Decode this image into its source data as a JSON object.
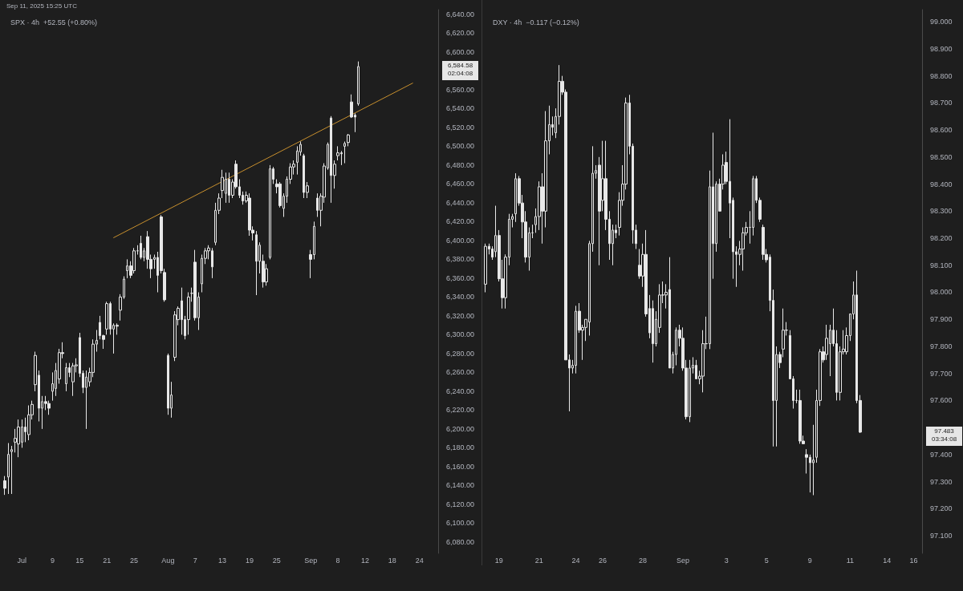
{
  "chart_data": [
    {
      "type": "candlestick",
      "title": "SPX · 4h  +52.55 (+0.80%)",
      "subtitle": "Sep 11, 2025 15:25 UTC",
      "annotations": [
        "6,584.58",
        "02:04:08"
      ],
      "categories": [
        null,
        null,
        null,
        null,
        null,
        "Jul",
        null,
        null,
        null,
        null,
        null,
        null,
        null,
        null,
        "9",
        null,
        null,
        null,
        null,
        null,
        null,
        null,
        "15",
        null,
        null,
        null,
        null,
        null,
        null,
        null,
        "21",
        null,
        null,
        null,
        null,
        null,
        null,
        null,
        "25",
        null,
        null,
        null,
        null,
        null,
        null,
        null,
        null,
        null,
        "Aug",
        null,
        null,
        null,
        null,
        null,
        null,
        null,
        "7",
        null,
        null,
        null,
        null,
        null,
        null,
        null,
        "13",
        null,
        null,
        null,
        null,
        null,
        null,
        null,
        "19",
        null,
        null,
        null,
        null,
        null,
        null,
        null,
        "25",
        null,
        null,
        null,
        null,
        null,
        null,
        null,
        null,
        null,
        "Sep",
        null,
        null,
        null,
        null,
        null,
        null,
        null,
        "8",
        null,
        null,
        null,
        null,
        null,
        null,
        null,
        "12",
        null,
        null,
        null,
        null,
        null,
        null,
        null,
        "18",
        null,
        null,
        null,
        null,
        null,
        null,
        null,
        "24",
        null,
        null,
        null,
        null,
        null
      ],
      "ylim": [
        6068,
        6645
      ],
      "yticks": [
        {
          "value": 6080,
          "label": "6,080.00"
        },
        {
          "value": 6100,
          "label": "6,100.00"
        },
        {
          "value": 6120,
          "label": "6,120.00"
        },
        {
          "value": 6140,
          "label": "6,140.00"
        },
        {
          "value": 6160,
          "label": "6,160.00"
        },
        {
          "value": 6180,
          "label": "6,180.00"
        },
        {
          "value": 6200,
          "label": "6,200.00"
        },
        {
          "value": 6220,
          "label": "6,220.00"
        },
        {
          "value": 6240,
          "label": "6,240.00"
        },
        {
          "value": 6260,
          "label": "6,260.00"
        },
        {
          "value": 6280,
          "label": "6,280.00"
        },
        {
          "value": 6300,
          "label": "6,300.00"
        },
        {
          "value": 6320,
          "label": "6,320.00"
        },
        {
          "value": 6340,
          "label": "6,340.00"
        },
        {
          "value": 6360,
          "label": "6,360.00"
        },
        {
          "value": 6380,
          "label": "6,380.00"
        },
        {
          "value": 6400,
          "label": "6,400.00"
        },
        {
          "value": 6420,
          "label": "6,420.00"
        },
        {
          "value": 6440,
          "label": "6,440.00"
        },
        {
          "value": 6460,
          "label": "6,460.00"
        },
        {
          "value": 6480,
          "label": "6,480.00"
        },
        {
          "value": 6500,
          "label": "6,500.00"
        },
        {
          "value": 6520,
          "label": "6,520.00"
        },
        {
          "value": 6540,
          "label": "6,540.00"
        },
        {
          "value": 6560,
          "label": "6,560.00"
        },
        {
          "value": 6600,
          "label": "6,600.00"
        },
        {
          "value": 6620,
          "label": "6,620.00"
        },
        {
          "value": 6640,
          "label": "6,640.00"
        }
      ],
      "ohlc": [
        [
          6145,
          6150,
          6130,
          6137
        ],
        [
          6149,
          6185,
          6131,
          6173
        ],
        [
          6176,
          6182,
          6131,
          6178
        ],
        [
          6186,
          6200,
          6175,
          6190
        ],
        [
          6184,
          6210,
          6170,
          6202
        ],
        [
          6186,
          6210,
          6180,
          6202
        ],
        [
          6202,
          6212,
          6186,
          6197
        ],
        [
          6194,
          6225,
          6188,
          6215
        ],
        [
          6215,
          6230,
          6210,
          6226
        ],
        [
          6247,
          6282,
          6240,
          6278
        ],
        [
          6257,
          6262,
          6208,
          6222
        ],
        [
          6222,
          6235,
          6200,
          6229
        ],
        [
          6229,
          6235,
          6220,
          6227
        ],
        [
          6227,
          6230,
          6215,
          6222
        ],
        [
          6240,
          6260,
          6230,
          6248
        ],
        [
          6243,
          6270,
          6235,
          6262
        ],
        [
          6253,
          6285,
          6248,
          6281
        ],
        [
          6281,
          6292,
          6275,
          6280
        ],
        [
          6248,
          6270,
          6240,
          6265
        ],
        [
          6265,
          6270,
          6255,
          6260
        ],
        [
          6250,
          6270,
          6235,
          6267
        ],
        [
          6267,
          6275,
          6260,
          6268
        ],
        [
          6297,
          6302,
          6255,
          6259
        ],
        [
          6259,
          6262,
          6238,
          6244
        ],
        [
          6244,
          6262,
          6200,
          6255
        ],
        [
          6250,
          6265,
          6245,
          6260
        ],
        [
          6260,
          6295,
          6255,
          6290
        ],
        [
          6290,
          6305,
          6282,
          6294
        ],
        [
          6313,
          6320,
          6295,
          6299
        ],
        [
          6299,
          6300,
          6285,
          6295
        ],
        [
          6306,
          6335,
          6300,
          6333
        ],
        [
          6333,
          6335,
          6300,
          6306
        ],
        [
          6306,
          6312,
          6280,
          6310
        ],
        [
          6310,
          6312,
          6300,
          6309
        ],
        [
          6326,
          6343,
          6315,
          6340
        ],
        [
          6340,
          6362,
          6338,
          6359
        ],
        [
          6368,
          6380,
          6360,
          6373
        ],
        [
          6373,
          6378,
          6360,
          6363
        ],
        [
          6368,
          6392,
          6365,
          6389
        ],
        [
          6389,
          6395,
          6385,
          6389
        ],
        [
          6397,
          6405,
          6380,
          6382
        ],
        [
          6382,
          6392,
          6378,
          6389
        ],
        [
          6404,
          6410,
          6370,
          6380
        ],
        [
          6380,
          6385,
          6360,
          6370
        ],
        [
          6380,
          6385,
          6370,
          6382
        ],
        [
          6382,
          6388,
          6345,
          6363
        ],
        [
          6425,
          6427,
          6365,
          6368
        ],
        [
          6366,
          6370,
          6335,
          6337
        ],
        [
          6278,
          6280,
          6215,
          6222
        ],
        [
          6222,
          6250,
          6212,
          6236
        ],
        [
          6276,
          6325,
          6272,
          6321
        ],
        [
          6316,
          6330,
          6310,
          6328
        ],
        [
          6336,
          6350,
          6300,
          6316
        ],
        [
          6316,
          6320,
          6295,
          6299
        ],
        [
          6316,
          6345,
          6300,
          6340
        ],
        [
          6344,
          6350,
          6335,
          6344
        ],
        [
          6377,
          6390,
          6315,
          6318
        ],
        [
          6318,
          6345,
          6305,
          6340
        ],
        [
          6354,
          6385,
          6345,
          6381
        ],
        [
          6381,
          6392,
          6375,
          6389
        ],
        [
          6389,
          6395,
          6380,
          6392
        ],
        [
          6389,
          6392,
          6360,
          6372
        ],
        [
          6398,
          6440,
          6395,
          6432
        ],
        [
          6432,
          6450,
          6428,
          6445
        ],
        [
          6453,
          6475,
          6445,
          6467
        ],
        [
          6450,
          6472,
          6440,
          6465
        ],
        [
          6465,
          6472,
          6440,
          6448
        ],
        [
          6448,
          6465,
          6445,
          6462
        ],
        [
          6481,
          6485,
          6455,
          6457
        ],
        [
          6457,
          6465,
          6445,
          6448
        ],
        [
          6448,
          6452,
          6438,
          6442
        ],
        [
          6442,
          6452,
          6440,
          6448
        ],
        [
          6445,
          6450,
          6405,
          6411
        ],
        [
          6411,
          6415,
          6400,
          6408
        ],
        [
          6406,
          6410,
          6342,
          6378
        ],
        [
          6378,
          6398,
          6365,
          6395
        ],
        [
          6378,
          6385,
          6350,
          6356
        ],
        [
          6356,
          6375,
          6352,
          6370
        ],
        [
          6382,
          6480,
          6380,
          6476
        ],
        [
          6476,
          6478,
          6460,
          6465
        ],
        [
          6460,
          6465,
          6450,
          6457
        ],
        [
          6460,
          6462,
          6435,
          6437
        ],
        [
          6434,
          6450,
          6425,
          6447
        ],
        [
          6447,
          6468,
          6440,
          6465
        ],
        [
          6465,
          6482,
          6460,
          6478
        ],
        [
          6478,
          6485,
          6470,
          6481
        ],
        [
          6483,
          6500,
          6470,
          6495
        ],
        [
          6494,
          6505,
          6490,
          6502
        ],
        [
          6490,
          6492,
          6445,
          6451
        ],
        [
          6451,
          6462,
          6445,
          6458
        ],
        [
          6385,
          6390,
          6360,
          6380
        ],
        [
          6385,
          6420,
          6380,
          6415
        ],
        [
          6445,
          6450,
          6425,
          6432
        ],
        [
          6432,
          6450,
          6415,
          6447
        ],
        [
          6446,
          6482,
          6440,
          6479
        ],
        [
          6477,
          6504,
          6475,
          6502
        ],
        [
          6530,
          6532,
          6440,
          6469
        ],
        [
          6469,
          6485,
          6455,
          6481
        ],
        [
          6490,
          6500,
          6485,
          6493
        ],
        [
          6493,
          6495,
          6480,
          6492
        ],
        [
          6500,
          6505,
          6482,
          6503
        ],
        [
          6504,
          6513,
          6500,
          6512
        ],
        [
          6547,
          6555,
          6530,
          6531
        ],
        [
          6533,
          6535,
          6515,
          6531
        ],
        [
          6545,
          6590,
          6543,
          6584.58
        ],
        null,
        null,
        null,
        null,
        null,
        null,
        null,
        null,
        null,
        null,
        null,
        null,
        null,
        null,
        null,
        null,
        null,
        null,
        null,
        null,
        null,
        null,
        null
      ],
      "series": [
        {
          "type": "line",
          "color": "#c8902e",
          "values": [
            null,
            null,
            null,
            null,
            null,
            null,
            null,
            null,
            null,
            null,
            null,
            null,
            null,
            null,
            null,
            null,
            null,
            null,
            null,
            null,
            null,
            null,
            null,
            null,
            null,
            null,
            null,
            null,
            null,
            null,
            null,
            null,
            6403,
            null,
            null,
            null,
            null,
            null,
            null,
            null,
            null,
            null,
            null,
            null,
            null,
            null,
            null,
            null,
            null,
            null,
            null,
            null,
            null,
            null,
            null,
            null,
            null,
            null,
            null,
            null,
            null,
            null,
            null,
            null,
            null,
            null,
            null,
            null,
            null,
            null,
            null,
            null,
            null,
            null,
            null,
            null,
            null,
            null,
            null,
            null,
            null,
            null,
            null,
            null,
            null,
            null,
            null,
            null,
            null,
            null,
            null,
            null,
            null,
            null,
            null,
            null,
            null,
            null,
            null,
            null,
            null,
            null,
            null,
            null,
            null,
            null,
            null,
            null,
            null,
            null,
            null,
            null,
            null,
            null,
            null,
            null,
            null,
            null,
            null,
            null,
            6567,
            null,
            null,
            null,
            null,
            null,
            null,
            null
          ]
        }
      ]
    },
    {
      "type": "candlestick",
      "title": "DXY · 4h  −0.117 (−0.12%)",
      "annotations": [
        "97.483",
        "03:34:08"
      ],
      "categories": [
        null,
        null,
        null,
        null,
        "19",
        null,
        null,
        null,
        null,
        null,
        null,
        null,
        null,
        null,
        null,
        null,
        "21",
        null,
        null,
        null,
        null,
        null,
        null,
        null,
        null,
        null,
        null,
        "24",
        null,
        null,
        null,
        null,
        null,
        null,
        null,
        "26",
        null,
        null,
        null,
        null,
        null,
        null,
        null,
        null,
        null,
        null,
        null,
        "28",
        null,
        null,
        null,
        null,
        null,
        null,
        null,
        null,
        null,
        null,
        null,
        "Sep",
        null,
        null,
        null,
        null,
        null,
        null,
        null,
        null,
        null,
        null,
        null,
        null,
        "3",
        null,
        null,
        null,
        null,
        null,
        null,
        null,
        null,
        null,
        null,
        null,
        "5",
        null,
        null,
        null,
        null,
        null,
        null,
        null,
        null,
        null,
        null,
        null,
        null,
        "9",
        null,
        null,
        null,
        null,
        null,
        null,
        null,
        null,
        null,
        null,
        null,
        "11",
        null,
        null,
        null,
        null,
        null,
        null,
        null,
        null,
        null,
        null,
        "14",
        null,
        null,
        null,
        null,
        null,
        null,
        null,
        "16",
        null,
        null
      ],
      "ylim": [
        97.035,
        99.045
      ],
      "yticks": [
        {
          "value": 97.1,
          "label": "97.100"
        },
        {
          "value": 97.2,
          "label": "97.200"
        },
        {
          "value": 97.3,
          "label": "97.300"
        },
        {
          "value": 97.4,
          "label": "97.400"
        },
        {
          "value": 97.6,
          "label": "97.600"
        },
        {
          "value": 97.7,
          "label": "97.700"
        },
        {
          "value": 97.8,
          "label": "97.800"
        },
        {
          "value": 97.9,
          "label": "97.900"
        },
        {
          "value": 98.0,
          "label": "98.000"
        },
        {
          "value": 98.1,
          "label": "98.100"
        },
        {
          "value": 98.2,
          "label": "98.200"
        },
        {
          "value": 98.3,
          "label": "98.300"
        },
        {
          "value": 98.4,
          "label": "98.400"
        },
        {
          "value": 98.5,
          "label": "98.500"
        },
        {
          "value": 98.6,
          "label": "98.600"
        },
        {
          "value": 98.7,
          "label": "98.700"
        },
        {
          "value": 98.8,
          "label": "98.800"
        },
        {
          "value": 98.9,
          "label": "98.900"
        },
        {
          "value": 99.0,
          "label": "99.000"
        }
      ],
      "ohlc": [
        [
          98.03,
          98.18,
          98.0,
          98.17
        ],
        [
          98.17,
          98.18,
          98.14,
          98.16
        ],
        [
          98.16,
          98.17,
          98.12,
          98.13
        ],
        [
          98.15,
          98.32,
          98.13,
          98.21
        ],
        [
          98.21,
          98.23,
          98.04,
          98.05
        ],
        [
          98.05,
          98.12,
          97.94,
          97.98
        ],
        [
          97.98,
          98.14,
          97.94,
          98.13
        ],
        [
          98.13,
          98.29,
          98.1,
          98.27
        ],
        [
          98.27,
          98.29,
          98.24,
          98.28
        ],
        [
          98.29,
          98.44,
          98.26,
          98.42
        ],
        [
          98.42,
          98.43,
          98.32,
          98.33
        ],
        [
          98.33,
          98.36,
          98.2,
          98.26
        ],
        [
          98.26,
          98.3,
          98.11,
          98.13
        ],
        [
          98.13,
          98.24,
          98.08,
          98.22
        ],
        [
          98.22,
          98.25,
          98.2,
          98.22
        ],
        [
          98.25,
          98.31,
          98.22,
          98.28
        ],
        [
          98.28,
          98.41,
          98.23,
          98.39
        ],
        [
          98.39,
          98.44,
          98.18,
          98.3
        ],
        [
          98.3,
          98.67,
          98.24,
          98.56
        ],
        [
          98.56,
          98.69,
          98.51,
          98.62
        ],
        [
          98.62,
          98.65,
          98.58,
          98.61
        ],
        [
          98.59,
          98.68,
          98.57,
          98.65
        ],
        [
          98.65,
          98.84,
          98.62,
          98.78
        ],
        [
          98.78,
          98.8,
          98.73,
          98.74
        ],
        [
          98.74,
          98.75,
          97.75,
          97.75
        ],
        [
          97.75,
          97.77,
          97.56,
          97.72
        ],
        [
          97.72,
          97.75,
          97.7,
          97.73
        ],
        [
          97.73,
          97.95,
          97.7,
          97.93
        ],
        [
          97.93,
          97.96,
          97.85,
          97.86
        ],
        [
          97.86,
          97.88,
          97.75,
          97.87
        ],
        [
          97.87,
          97.9,
          97.82,
          97.9
        ],
        [
          97.89,
          98.19,
          97.84,
          98.18
        ],
        [
          98.18,
          98.54,
          98.15,
          98.44
        ],
        [
          98.44,
          98.47,
          98.42,
          98.45
        ],
        [
          98.47,
          98.5,
          98.1,
          98.3
        ],
        [
          98.34,
          98.56,
          98.3,
          98.42
        ],
        [
          98.42,
          98.56,
          98.23,
          98.27
        ],
        [
          98.27,
          98.3,
          98.12,
          98.18
        ],
        [
          98.18,
          98.25,
          98.1,
          98.23
        ],
        [
          98.23,
          98.25,
          98.2,
          98.22
        ],
        [
          98.24,
          98.37,
          98.21,
          98.34
        ],
        [
          98.34,
          98.47,
          98.32,
          98.4
        ],
        [
          98.4,
          98.72,
          98.38,
          98.7
        ],
        [
          98.7,
          98.73,
          98.51,
          98.54
        ],
        [
          98.54,
          98.55,
          98.18,
          98.23
        ],
        [
          98.23,
          98.25,
          98.16,
          98.18
        ],
        [
          98.1,
          98.16,
          98.05,
          98.06
        ],
        [
          98.06,
          98.18,
          98.02,
          98.14
        ],
        [
          98.14,
          98.23,
          97.91,
          97.92
        ],
        [
          97.94,
          97.99,
          97.83,
          97.85
        ],
        [
          97.94,
          97.97,
          97.74,
          97.81
        ],
        [
          97.81,
          97.93,
          97.8,
          97.9
        ],
        [
          97.87,
          98.03,
          97.85,
          97.99
        ],
        [
          97.99,
          98.04,
          97.96,
          97.99
        ],
        [
          97.99,
          98.03,
          97.94,
          98.0
        ],
        [
          98.01,
          98.13,
          97.72,
          97.72
        ],
        [
          97.72,
          97.78,
          97.7,
          97.77
        ],
        [
          97.77,
          97.87,
          97.73,
          97.86
        ],
        [
          97.86,
          97.88,
          97.8,
          97.83
        ],
        [
          97.83,
          97.87,
          97.71,
          97.72
        ],
        [
          97.72,
          97.75,
          97.53,
          97.54
        ],
        [
          97.54,
          97.75,
          97.52,
          97.72
        ],
        [
          97.72,
          97.76,
          97.7,
          97.73
        ],
        [
          97.73,
          97.75,
          97.68,
          97.68
        ],
        [
          97.68,
          97.71,
          97.66,
          97.69
        ],
        [
          97.69,
          97.86,
          97.63,
          97.81
        ],
        [
          97.81,
          97.91,
          97.79,
          97.81
        ],
        [
          97.81,
          98.45,
          97.79,
          98.39
        ],
        [
          98.39,
          98.59,
          98.05,
          98.18
        ],
        [
          98.18,
          98.41,
          98.15,
          98.4
        ],
        [
          98.4,
          98.42,
          98.3,
          98.3
        ],
        [
          98.4,
          98.51,
          98.38,
          98.47
        ],
        [
          98.48,
          98.52,
          98.4,
          98.41
        ],
        [
          98.41,
          98.64,
          98.2,
          98.33
        ],
        [
          98.34,
          98.35,
          98.05,
          98.15
        ],
        [
          98.15,
          98.17,
          98.02,
          98.14
        ],
        [
          98.14,
          98.19,
          98.1,
          98.16
        ],
        [
          98.16,
          98.24,
          98.08,
          98.22
        ],
        [
          98.22,
          98.26,
          98.21,
          98.24
        ],
        [
          98.24,
          98.3,
          98.18,
          98.24
        ],
        [
          98.24,
          98.43,
          98.21,
          98.42
        ],
        [
          98.42,
          98.43,
          98.33,
          98.34
        ],
        [
          98.34,
          98.35,
          98.26,
          98.27
        ],
        [
          98.24,
          98.25,
          98.12,
          98.14
        ],
        [
          98.14,
          98.16,
          98.11,
          98.12
        ],
        [
          98.13,
          98.14,
          97.93,
          97.97
        ],
        [
          97.97,
          98.01,
          97.43,
          97.6
        ],
        [
          97.6,
          97.8,
          97.43,
          97.77
        ],
        [
          97.77,
          97.78,
          97.72,
          97.74
        ],
        [
          97.79,
          97.94,
          97.76,
          97.86
        ],
        [
          97.86,
          97.89,
          97.84,
          97.86
        ],
        [
          97.84,
          97.86,
          97.68,
          97.68
        ],
        [
          97.68,
          97.69,
          97.57,
          97.6
        ],
        [
          97.6,
          97.64,
          97.59,
          97.6
        ],
        [
          97.6,
          97.64,
          97.44,
          97.45
        ],
        [
          97.45,
          97.47,
          97.44,
          97.44
        ],
        [
          97.4,
          97.42,
          97.33,
          97.39
        ],
        [
          97.39,
          97.4,
          97.26,
          97.37
        ],
        [
          97.37,
          97.51,
          97.25,
          97.38
        ],
        [
          97.39,
          97.64,
          97.37,
          97.6
        ],
        [
          97.6,
          97.79,
          97.58,
          97.78
        ],
        [
          97.78,
          97.8,
          97.74,
          97.75
        ],
        [
          97.77,
          97.88,
          97.75,
          97.83
        ],
        [
          97.81,
          97.88,
          97.69,
          97.86
        ],
        [
          97.86,
          97.94,
          97.8,
          97.81
        ],
        [
          97.81,
          97.86,
          97.6,
          97.63
        ],
        [
          97.63,
          97.8,
          97.6,
          97.78
        ],
        [
          97.78,
          97.86,
          97.77,
          97.79
        ],
        [
          97.78,
          97.87,
          97.77,
          97.84
        ],
        [
          97.84,
          97.92,
          97.82,
          97.92
        ],
        [
          97.92,
          98.04,
          97.9,
          97.99
        ],
        [
          97.99,
          98.08,
          97.59,
          97.6
        ],
        [
          97.6,
          97.62,
          97.48,
          97.483
        ],
        null,
        null,
        null,
        null,
        null,
        null,
        null,
        null,
        null,
        null,
        null,
        null,
        null,
        null,
        null,
        null,
        null,
        null
      ]
    }
  ]
}
